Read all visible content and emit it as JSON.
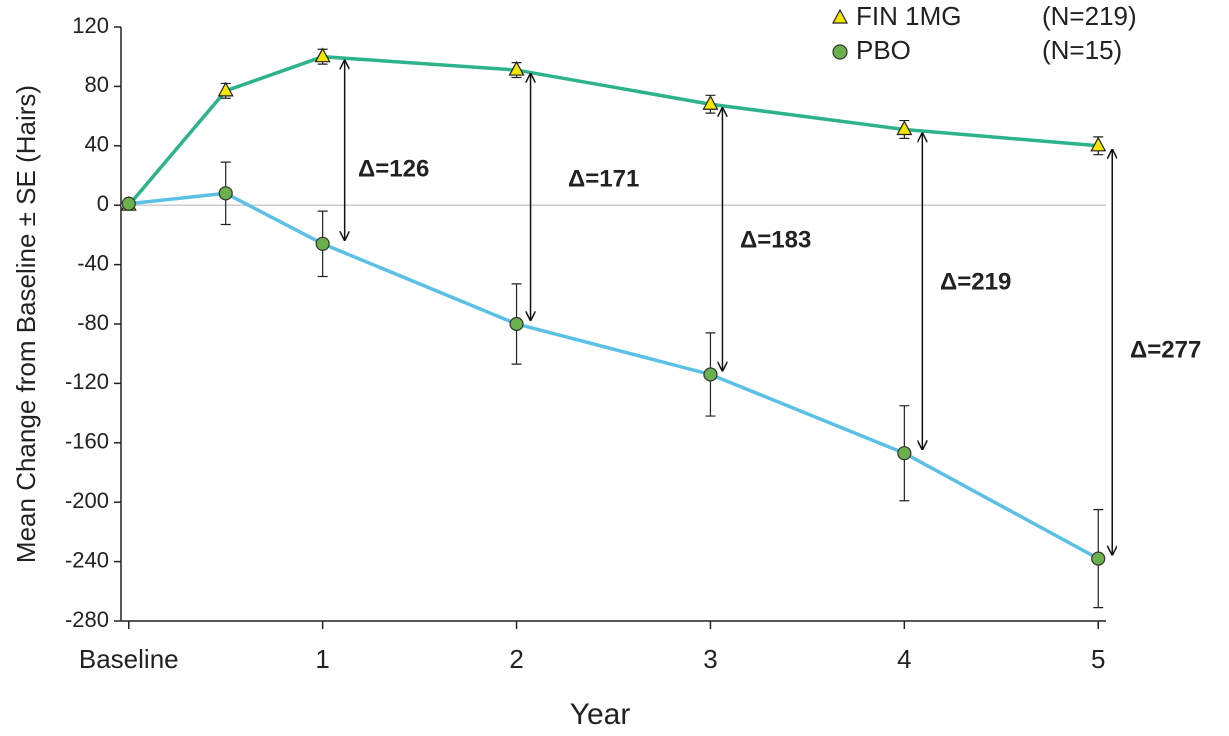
{
  "chart_data": {
    "type": "line",
    "xlabel": "Year",
    "ylabel": "Mean Change from Baseline ± SE (Hairs)",
    "xlim": [
      -0.04,
      5.04
    ],
    "xticks": [
      {
        "value": 0,
        "label": "Baseline"
      },
      1,
      2,
      3,
      4,
      5
    ],
    "ylim": [
      -280,
      120
    ],
    "yticks": [
      -280,
      -240,
      -200,
      -160,
      -120,
      -80,
      -40,
      0,
      40,
      80,
      120
    ],
    "zero_line": true,
    "x": [
      0,
      0.5,
      1,
      2,
      3,
      4,
      5
    ],
    "series": [
      {
        "name": "FIN 1MG",
        "n_label": "(N=219)",
        "color": "#2db38a",
        "marker": "triangle",
        "marker_color": "#f5e600",
        "values": [
          0,
          77,
          100,
          91,
          68,
          51,
          40
        ],
        "errors": [
          0,
          5,
          5,
          5,
          6,
          6,
          6
        ]
      },
      {
        "name": "PBO",
        "n_label": "(N=15)",
        "color": "#5bc0e6",
        "marker": "circle",
        "marker_color": "#6ab04c",
        "values": [
          1,
          8,
          -26,
          -80,
          -114,
          -167,
          -238
        ],
        "errors": [
          0,
          21,
          22,
          27,
          28,
          32,
          33
        ]
      }
    ],
    "annotations": [
      "Δ=126",
      "Δ=171",
      "Δ=183",
      "Δ=219",
      "Δ=277"
    ]
  }
}
